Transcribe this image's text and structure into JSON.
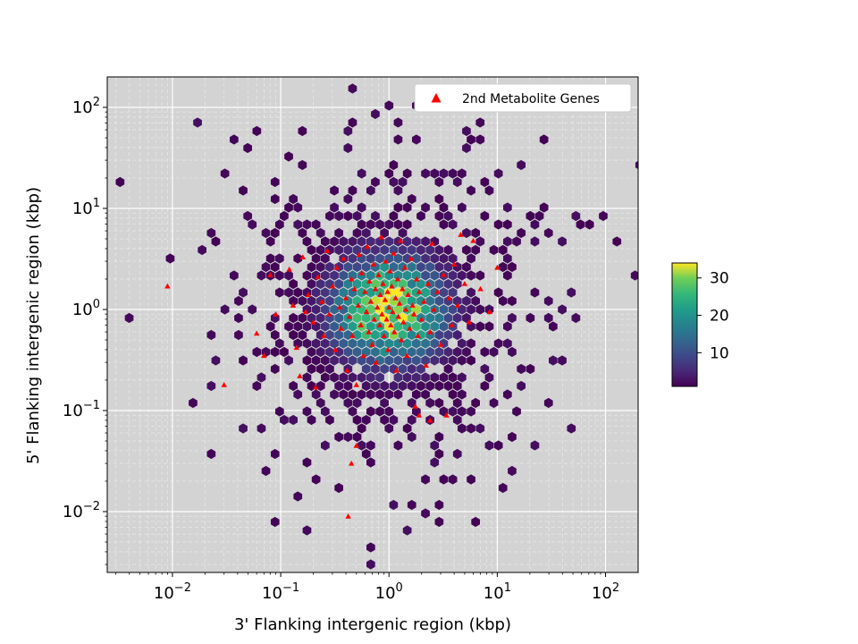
{
  "chart_data": {
    "type": "hexbin",
    "title": "",
    "xlabel": "3' Flanking intergenic region (kbp)",
    "ylabel": "5' Flanking intergenic region (kbp)",
    "x_scale": "log",
    "y_scale": "log",
    "xlim": [
      0.0025,
      200
    ],
    "ylim": [
      0.0025,
      200
    ],
    "x_ticks": [
      {
        "value": 0.01,
        "base": "10",
        "exp": "−2"
      },
      {
        "value": 0.1,
        "base": "10",
        "exp": "−1"
      },
      {
        "value": 1,
        "base": "10",
        "exp": "0"
      },
      {
        "value": 10,
        "base": "10",
        "exp": "1"
      },
      {
        "value": 100,
        "base": "10",
        "exp": "2"
      }
    ],
    "y_ticks": [
      {
        "value": 0.01,
        "base": "10",
        "exp": "−2"
      },
      {
        "value": 0.1,
        "base": "10",
        "exp": "−1"
      },
      {
        "value": 1,
        "base": "10",
        "exp": "0"
      },
      {
        "value": 10,
        "base": "10",
        "exp": "1"
      },
      {
        "value": 100,
        "base": "10",
        "exp": "2"
      }
    ],
    "grid": true,
    "background_color": "#d3d3d3",
    "colormap": "viridis",
    "colorbar": {
      "min": 1,
      "max": 34,
      "ticks": [
        10,
        20,
        30
      ],
      "labels": [
        "10",
        "20",
        "30"
      ]
    },
    "density": {
      "center_x": 1.0,
      "center_y": 1.0,
      "peak_count": 34,
      "log_spread_x": 0.38,
      "log_spread_y": 0.36
    },
    "series": [
      {
        "name": "2nd Metabolite Genes",
        "marker": "triangle",
        "color": "#ff0000",
        "points": [
          [
            0.009,
            1.7
          ],
          [
            0.03,
            0.18
          ],
          [
            0.06,
            0.58
          ],
          [
            0.07,
            0.35
          ],
          [
            0.08,
            2.2
          ],
          [
            0.09,
            0.9
          ],
          [
            0.12,
            2.5
          ],
          [
            0.13,
            1.1
          ],
          [
            0.14,
            0.42
          ],
          [
            0.16,
            3.3
          ],
          [
            0.17,
            0.95
          ],
          [
            0.18,
            1.4
          ],
          [
            0.2,
            0.75
          ],
          [
            0.21,
            0.17
          ],
          [
            0.22,
            2.1
          ],
          [
            0.24,
            1.2
          ],
          [
            0.25,
            0.55
          ],
          [
            0.27,
            3.8
          ],
          [
            0.28,
            0.9
          ],
          [
            0.3,
            1.7
          ],
          [
            0.32,
            0.4
          ],
          [
            0.33,
            2.6
          ],
          [
            0.35,
            1.05
          ],
          [
            0.36,
            0.65
          ],
          [
            0.38,
            3.2
          ],
          [
            0.4,
            1.3
          ],
          [
            0.41,
            0.25
          ],
          [
            0.42,
            0.009
          ],
          [
            0.43,
            0.85
          ],
          [
            0.45,
            2.0
          ],
          [
            0.46,
            0.55
          ],
          [
            0.48,
            1.6
          ],
          [
            0.5,
            0.18
          ],
          [
            0.52,
            1.1
          ],
          [
            0.53,
            3.5
          ],
          [
            0.55,
            0.7
          ],
          [
            0.56,
            2.3
          ],
          [
            0.58,
            0.35
          ],
          [
            0.6,
            1.5
          ],
          [
            0.62,
            0.95
          ],
          [
            0.63,
            4.2
          ],
          [
            0.65,
            0.6
          ],
          [
            0.66,
            1.9
          ],
          [
            0.68,
            1.2
          ],
          [
            0.7,
            0.45
          ],
          [
            0.72,
            2.8
          ],
          [
            0.73,
            0.8
          ],
          [
            0.75,
            1.6
          ],
          [
            0.76,
            0.3
          ],
          [
            0.78,
            1.05
          ],
          [
            0.8,
            2.2
          ],
          [
            0.82,
            0.7
          ],
          [
            0.83,
            1.4
          ],
          [
            0.85,
            5.2
          ],
          [
            0.86,
            0.9
          ],
          [
            0.88,
            1.8
          ],
          [
            0.9,
            0.55
          ],
          [
            0.92,
            1.25
          ],
          [
            0.93,
            3.0
          ],
          [
            0.95,
            0.8
          ],
          [
            0.97,
            1.5
          ],
          [
            0.98,
            0.4
          ],
          [
            1.0,
            1.05
          ],
          [
            1.02,
            2.4
          ],
          [
            1.04,
            0.7
          ],
          [
            1.06,
            1.7
          ],
          [
            1.08,
            0.95
          ],
          [
            1.1,
            3.6
          ],
          [
            1.12,
            0.6
          ],
          [
            1.15,
            1.3
          ],
          [
            1.17,
            0.25
          ],
          [
            1.2,
            2.0
          ],
          [
            1.22,
            0.85
          ],
          [
            1.25,
            1.15
          ],
          [
            1.28,
            4.8
          ],
          [
            1.3,
            0.5
          ],
          [
            1.33,
            1.6
          ],
          [
            1.36,
            0.75
          ],
          [
            1.4,
            2.6
          ],
          [
            1.43,
            1.0
          ],
          [
            1.46,
            0.35
          ],
          [
            1.5,
            1.4
          ],
          [
            1.55,
            0.65
          ],
          [
            1.6,
            3.2
          ],
          [
            1.65,
            1.1
          ],
          [
            1.7,
            0.9
          ],
          [
            1.75,
            0.11
          ],
          [
            1.8,
            2.0
          ],
          [
            1.85,
            0.55
          ],
          [
            1.9,
            1.5
          ],
          [
            2.0,
            0.8
          ],
          [
            2.1,
            1.2
          ],
          [
            2.2,
            0.28
          ],
          [
            2.3,
            1.8
          ],
          [
            2.4,
            0.6
          ],
          [
            2.5,
            4.5
          ],
          [
            2.6,
            1.0
          ],
          [
            2.8,
            1.5
          ],
          [
            3.0,
            0.45
          ],
          [
            3.2,
            2.2
          ],
          [
            3.4,
            0.09
          ],
          [
            3.6,
            1.3
          ],
          [
            3.8,
            0.7
          ],
          [
            4.0,
            2.8
          ],
          [
            4.3,
            1.1
          ],
          [
            4.6,
            5.5
          ],
          [
            5.0,
            1.8
          ],
          [
            5.5,
            0.75
          ],
          [
            6.0,
            4.8
          ],
          [
            7.0,
            1.6
          ],
          [
            8.5,
            0.95
          ],
          [
            10.0,
            2.6
          ],
          [
            0.15,
            0.22
          ],
          [
            0.5,
            0.045
          ],
          [
            0.45,
            0.03
          ],
          [
            1.9,
            0.09
          ],
          [
            2.4,
            0.08
          ]
        ]
      }
    ],
    "legend": {
      "position": "top-right",
      "entries": [
        "2nd Metabolite Genes"
      ]
    }
  }
}
